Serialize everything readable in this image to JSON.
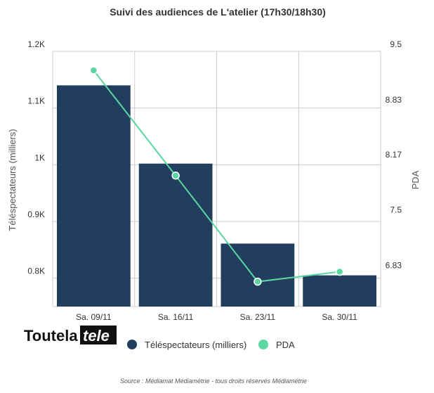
{
  "chart_data": {
    "type": "bar",
    "title": "Suivi des audiences de L'atelier (17h30/18h30)",
    "categories": [
      "Sa. 09/11",
      "Sa. 16/11",
      "Sa. 23/11",
      "Sa. 30/11"
    ],
    "series": [
      {
        "name": "Téléspectateurs (milliers)",
        "type": "bar",
        "axis": "left",
        "color": "#223e5e",
        "values": [
          1140,
          1002,
          861,
          805
        ]
      },
      {
        "name": "PDA",
        "type": "line",
        "axis": "right",
        "color": "#5cd6a0",
        "values": [
          9.27,
          8.0,
          6.72,
          6.84
        ]
      }
    ],
    "ylabel": "Téléspectateurs (milliers)",
    "ylabel_right": "PDA",
    "ylim": [
      750,
      1200
    ],
    "ylim_right": [
      6.42,
      9.5
    ],
    "yticks": [
      {
        "value": 800,
        "label": "0.8K"
      },
      {
        "value": 900,
        "label": "0.9K"
      },
      {
        "value": 1000,
        "label": "1K"
      },
      {
        "value": 1100,
        "label": "1.1K"
      },
      {
        "value": 1200,
        "label": "1.2K"
      }
    ],
    "yticks_right": [
      {
        "value": 6.83,
        "label": "6.83"
      },
      {
        "value": 7.5,
        "label": "7.5"
      },
      {
        "value": 8.17,
        "label": "8.17"
      },
      {
        "value": 8.83,
        "label": "8.83"
      },
      {
        "value": 9.5,
        "label": "9.5"
      }
    ],
    "grid": true,
    "legend_position": "bottom"
  },
  "logo": {
    "part1": "Toutela",
    "part2": "tele"
  },
  "source": "Source : Médiamat Médiamétrie - tous droits réservés Médiamétrie"
}
